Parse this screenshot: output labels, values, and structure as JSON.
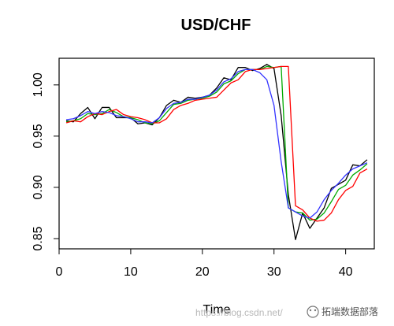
{
  "chart_data": {
    "type": "line",
    "title": "USD/CHF",
    "xlabel": "Time",
    "ylabel": "",
    "xlim": [
      0,
      44
    ],
    "ylim": [
      0.84,
      1.026
    ],
    "x_ticks": [
      0,
      10,
      20,
      30,
      40
    ],
    "y_ticks": [
      0.85,
      0.9,
      0.95,
      1.0
    ],
    "y_tick_labels": [
      "0.85",
      "0.90",
      "0.95",
      "1.00"
    ],
    "grid": false,
    "x": [
      1,
      2,
      3,
      4,
      5,
      6,
      7,
      8,
      9,
      10,
      11,
      12,
      13,
      14,
      15,
      16,
      17,
      18,
      19,
      20,
      21,
      22,
      23,
      24,
      25,
      26,
      27,
      28,
      29,
      30,
      31,
      32,
      33,
      34,
      35,
      36,
      37,
      38,
      39,
      40,
      41,
      42,
      43
    ],
    "series": [
      {
        "color": "#000000",
        "values": [
          0.965,
          0.964,
          0.972,
          0.978,
          0.967,
          0.978,
          0.978,
          0.968,
          0.968,
          0.968,
          0.962,
          0.963,
          0.961,
          0.968,
          0.98,
          0.985,
          0.983,
          0.988,
          0.987,
          0.988,
          0.99,
          0.997,
          1.007,
          1.005,
          1.017,
          1.017,
          1.014,
          1.016,
          1.02,
          1.016,
          0.97,
          0.893,
          0.849,
          0.875,
          0.86,
          0.87,
          0.88,
          0.899,
          0.903,
          0.907,
          0.922,
          0.921,
          0.927
        ]
      },
      {
        "color": "#00aa00",
        "values": [
          0.964,
          0.965,
          0.967,
          0.972,
          0.971,
          0.972,
          0.976,
          0.973,
          0.969,
          0.968,
          0.966,
          0.963,
          0.962,
          0.965,
          0.973,
          0.981,
          0.982,
          0.985,
          0.986,
          0.987,
          0.989,
          0.993,
          1.001,
          1.004,
          1.011,
          1.015,
          1.015,
          1.015,
          1.018,
          1.017,
          1.018,
          0.88,
          0.876,
          0.875,
          0.868,
          0.869,
          0.875,
          0.886,
          0.898,
          0.902,
          0.912,
          0.917,
          0.923
        ]
      },
      {
        "color": "#ff0000",
        "values": [
          0.963,
          0.965,
          0.964,
          0.969,
          0.972,
          0.971,
          0.974,
          0.976,
          0.971,
          0.969,
          0.968,
          0.966,
          0.963,
          0.963,
          0.967,
          0.976,
          0.98,
          0.982,
          0.985,
          0.986,
          0.987,
          0.988,
          0.995,
          1.002,
          1.005,
          1.013,
          1.015,
          1.015,
          1.016,
          1.017,
          1.018,
          1.018,
          0.882,
          0.878,
          0.87,
          0.867,
          0.868,
          0.875,
          0.888,
          0.897,
          0.901,
          0.914,
          0.918
        ]
      },
      {
        "color": "#3333ff",
        "values": [
          0.966,
          0.967,
          0.97,
          0.974,
          0.972,
          0.974,
          0.973,
          0.97,
          0.969,
          0.967,
          0.964,
          0.964,
          0.963,
          0.968,
          0.977,
          0.982,
          0.983,
          0.986,
          0.986,
          0.988,
          0.99,
          0.995,
          1.003,
          1.006,
          1.013,
          1.015,
          1.015,
          1.012,
          1.005,
          0.98,
          0.925,
          0.88,
          0.876,
          0.872,
          0.87,
          0.876,
          0.888,
          0.897,
          0.904,
          0.912,
          0.918,
          0.921,
          0.924
        ]
      }
    ]
  },
  "watermark": {
    "text": "https://blog.csdn.net/",
    "brand": "拓端数据部落"
  }
}
